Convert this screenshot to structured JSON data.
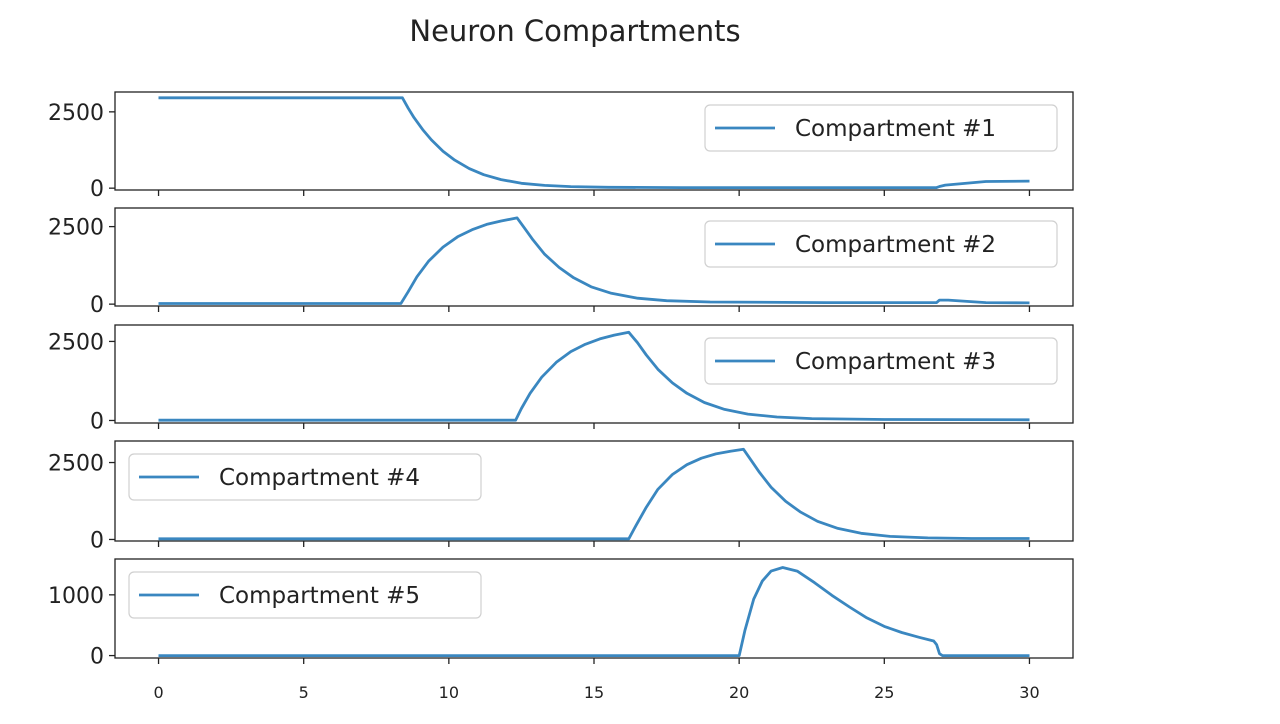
{
  "chart_data": {
    "title": "Neuron Compartments",
    "type": "line",
    "sharex": true,
    "xlim": [
      -1.5,
      31.5
    ],
    "x_ticks": [
      0,
      5,
      10,
      15,
      20,
      25,
      30
    ],
    "line_color": "#3a87c0",
    "panels": [
      {
        "series_name": "Compartment #1",
        "legend": "top-right",
        "ylim": [
          -60,
          3150
        ],
        "y_ticks": [
          0,
          2500
        ],
        "points": [
          [
            0,
            2960
          ],
          [
            8.4,
            2960
          ],
          [
            8.6,
            2620
          ],
          [
            8.8,
            2310
          ],
          [
            9.1,
            1920
          ],
          [
            9.4,
            1580
          ],
          [
            9.8,
            1210
          ],
          [
            10.2,
            920
          ],
          [
            10.7,
            640
          ],
          [
            11.2,
            440
          ],
          [
            11.8,
            280
          ],
          [
            12.5,
            160
          ],
          [
            13.3,
            90
          ],
          [
            14.2,
            50
          ],
          [
            15.5,
            30
          ],
          [
            18,
            20
          ],
          [
            22,
            20
          ],
          [
            26.8,
            20
          ],
          [
            26.9,
            55
          ],
          [
            27.1,
            100
          ],
          [
            28.5,
            220
          ],
          [
            30,
            230
          ]
        ]
      },
      {
        "series_name": "Compartment #2",
        "legend": "top-right",
        "ylim": [
          -60,
          3100
        ],
        "y_ticks": [
          0,
          2500
        ],
        "points": [
          [
            0,
            20
          ],
          [
            8.35,
            20
          ],
          [
            8.6,
            400
          ],
          [
            8.9,
            880
          ],
          [
            9.3,
            1380
          ],
          [
            9.8,
            1840
          ],
          [
            10.3,
            2170
          ],
          [
            10.8,
            2400
          ],
          [
            11.3,
            2570
          ],
          [
            11.8,
            2680
          ],
          [
            12.35,
            2780
          ],
          [
            12.6,
            2460
          ],
          [
            12.9,
            2070
          ],
          [
            13.3,
            1610
          ],
          [
            13.8,
            1180
          ],
          [
            14.3,
            850
          ],
          [
            14.9,
            560
          ],
          [
            15.6,
            350
          ],
          [
            16.5,
            190
          ],
          [
            17.5,
            110
          ],
          [
            19,
            70
          ],
          [
            23,
            50
          ],
          [
            26.8,
            50
          ],
          [
            26.9,
            130
          ],
          [
            27.2,
            130
          ],
          [
            28.5,
            50
          ],
          [
            30,
            40
          ]
        ]
      },
      {
        "series_name": "Compartment #3",
        "legend": "top-right",
        "ylim": [
          -80,
          3020
        ],
        "y_ticks": [
          0,
          2500
        ],
        "points": [
          [
            0,
            10
          ],
          [
            12.3,
            10
          ],
          [
            12.5,
            380
          ],
          [
            12.8,
            860
          ],
          [
            13.2,
            1370
          ],
          [
            13.7,
            1840
          ],
          [
            14.2,
            2180
          ],
          [
            14.7,
            2410
          ],
          [
            15.2,
            2580
          ],
          [
            15.7,
            2700
          ],
          [
            16.2,
            2790
          ],
          [
            16.5,
            2460
          ],
          [
            16.8,
            2070
          ],
          [
            17.2,
            1620
          ],
          [
            17.7,
            1190
          ],
          [
            18.2,
            860
          ],
          [
            18.8,
            570
          ],
          [
            19.5,
            350
          ],
          [
            20.3,
            200
          ],
          [
            21.3,
            110
          ],
          [
            22.5,
            60
          ],
          [
            25,
            30
          ],
          [
            30,
            20
          ]
        ]
      },
      {
        "series_name": "Compartment #4",
        "legend": "top-left",
        "ylim": [
          -50,
          3200
        ],
        "y_ticks": [
          0,
          2500
        ],
        "points": [
          [
            0,
            20
          ],
          [
            16.2,
            20
          ],
          [
            16.45,
            460
          ],
          [
            16.8,
            1050
          ],
          [
            17.2,
            1630
          ],
          [
            17.7,
            2110
          ],
          [
            18.2,
            2430
          ],
          [
            18.7,
            2640
          ],
          [
            19.2,
            2780
          ],
          [
            19.7,
            2870
          ],
          [
            20.15,
            2930
          ],
          [
            20.4,
            2590
          ],
          [
            20.7,
            2180
          ],
          [
            21.1,
            1700
          ],
          [
            21.6,
            1240
          ],
          [
            22.1,
            900
          ],
          [
            22.7,
            590
          ],
          [
            23.4,
            360
          ],
          [
            24.2,
            200
          ],
          [
            25.2,
            100
          ],
          [
            26.5,
            50
          ],
          [
            28,
            30
          ],
          [
            30,
            30
          ]
        ]
      },
      {
        "series_name": "Compartment #5",
        "legend": "top-left",
        "ylim": [
          -40,
          1590
        ],
        "y_ticks": [
          0,
          1000
        ],
        "points": [
          [
            0,
            0
          ],
          [
            20,
            0
          ],
          [
            20.2,
            420
          ],
          [
            20.5,
            930
          ],
          [
            20.8,
            1230
          ],
          [
            21.1,
            1390
          ],
          [
            21.5,
            1450
          ],
          [
            22,
            1390
          ],
          [
            22.6,
            1200
          ],
          [
            23.2,
            990
          ],
          [
            23.8,
            800
          ],
          [
            24.4,
            620
          ],
          [
            25,
            480
          ],
          [
            25.6,
            380
          ],
          [
            26.2,
            300
          ],
          [
            26.7,
            240
          ],
          [
            26.8,
            180
          ],
          [
            26.9,
            30
          ],
          [
            27,
            0
          ],
          [
            30,
            0
          ]
        ]
      }
    ]
  }
}
